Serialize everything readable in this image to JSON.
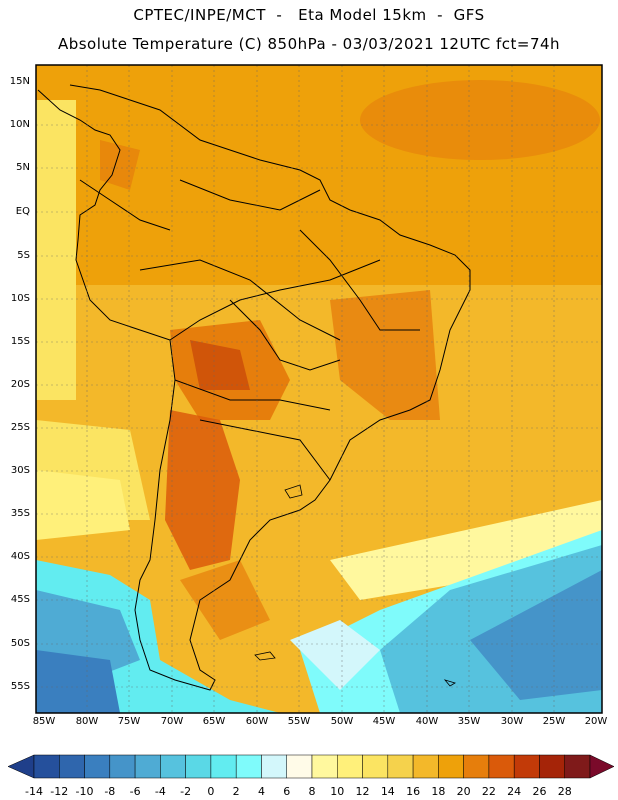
{
  "header": {
    "line1": "CPTEC/INPE/MCT  -   Eta Model 15km  -  GFS",
    "line2": "Absolute Temperature (C) 850hPa - 03/03/2021 12UTC fct=74h"
  },
  "map": {
    "lat_labels": [
      "15N",
      "10N",
      "5N",
      "EQ",
      "5S",
      "10S",
      "15S",
      "20S",
      "25S",
      "30S",
      "35S",
      "40S",
      "45S",
      "50S",
      "55S"
    ],
    "lon_labels": [
      "85W",
      "80W",
      "75W",
      "70W",
      "65W",
      "60W",
      "55W",
      "50W",
      "45W",
      "40W",
      "35W",
      "30W",
      "25W",
      "20W"
    ],
    "lat_range": [
      15,
      -55
    ],
    "lon_range": [
      -85,
      -20
    ]
  },
  "colorbar": {
    "ticks": [
      "-14",
      "-12",
      "-10",
      "-8",
      "-6",
      "-4",
      "-2",
      "0",
      "2",
      "4",
      "6",
      "8",
      "10",
      "12",
      "14",
      "16",
      "18",
      "20",
      "22",
      "24",
      "26",
      "28"
    ],
    "colors": [
      "#1f3f8a",
      "#25509c",
      "#2f66ad",
      "#3a7fbf",
      "#4594c9",
      "#4fabd4",
      "#56c2de",
      "#5ad8e6",
      "#62ecf0",
      "#7ffbfb",
      "#d3f7fb",
      "#fffbe8",
      "#fff89e",
      "#fff07a",
      "#fbe462",
      "#f5d24c",
      "#f3b82a",
      "#eea10a",
      "#e67e0c",
      "#da5a0a",
      "#c23a08",
      "#a52408",
      "#7f1a1a",
      "#7a0a2a"
    ]
  }
}
